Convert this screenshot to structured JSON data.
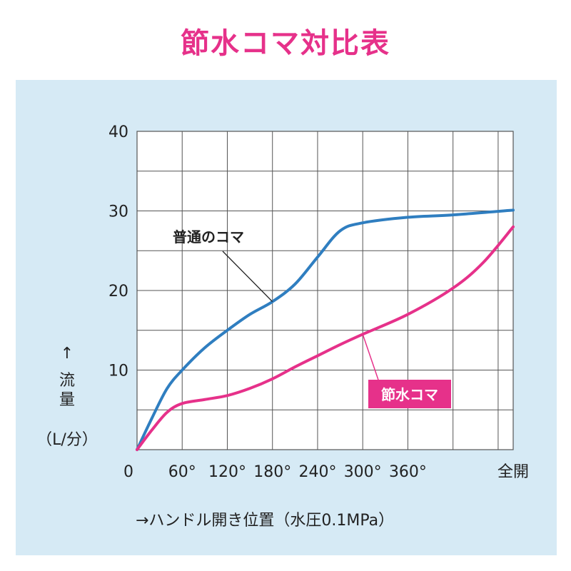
{
  "title": "節水コマ対比表",
  "chart_data": {
    "type": "line",
    "title": "節水コマ対比表",
    "xlabel": "→ハンドル開き位置（水圧0.1MPa）",
    "ylabel_arrow": "↑",
    "ylabel_1": "流",
    "ylabel_2": "量",
    "ylabel_unit": "（L/分）",
    "x_ticks": [
      {
        "value": 0,
        "label": "0"
      },
      {
        "value": 60,
        "label": "60°"
      },
      {
        "value": 120,
        "label": "120°"
      },
      {
        "value": 180,
        "label": "180°"
      },
      {
        "value": 240,
        "label": "240°"
      },
      {
        "value": 300,
        "label": "300°"
      },
      {
        "value": 360,
        "label": "360°"
      },
      {
        "value": 500,
        "label": "全開"
      }
    ],
    "x_grid": [
      60,
      120,
      180,
      240,
      300,
      360,
      420,
      480
    ],
    "xlim": [
      0,
      500
    ],
    "y_ticks": [
      10,
      20,
      30,
      40
    ],
    "y_grid": [
      5,
      10,
      15,
      20,
      25,
      30,
      35,
      40
    ],
    "ylim": [
      0,
      40
    ],
    "series": [
      {
        "name": "普通のコマ",
        "color": "#2f7ec0",
        "x": [
          0,
          20,
          40,
          60,
          90,
          120,
          150,
          180,
          210,
          240,
          270,
          300,
          360,
          420,
          500
        ],
        "y": [
          0,
          4,
          7.7,
          10,
          12.8,
          15,
          17,
          18.6,
          20.8,
          24.2,
          27.5,
          28.5,
          29.2,
          29.5,
          30.1
        ]
      },
      {
        "name": "節水コマ",
        "color": "#e6318a",
        "x": [
          0,
          20,
          40,
          60,
          90,
          120,
          150,
          180,
          210,
          240,
          270,
          300,
          360,
          420,
          460,
          500
        ],
        "y": [
          0,
          2.5,
          4.7,
          5.8,
          6.3,
          6.8,
          7.7,
          8.9,
          10.4,
          11.8,
          13.2,
          14.5,
          17,
          20.3,
          23.5,
          28
        ]
      }
    ],
    "annotations": [
      {
        "text": "普通のコマ",
        "series": "普通のコマ"
      },
      {
        "text": "節水コマ",
        "series": "節水コマ"
      }
    ]
  }
}
